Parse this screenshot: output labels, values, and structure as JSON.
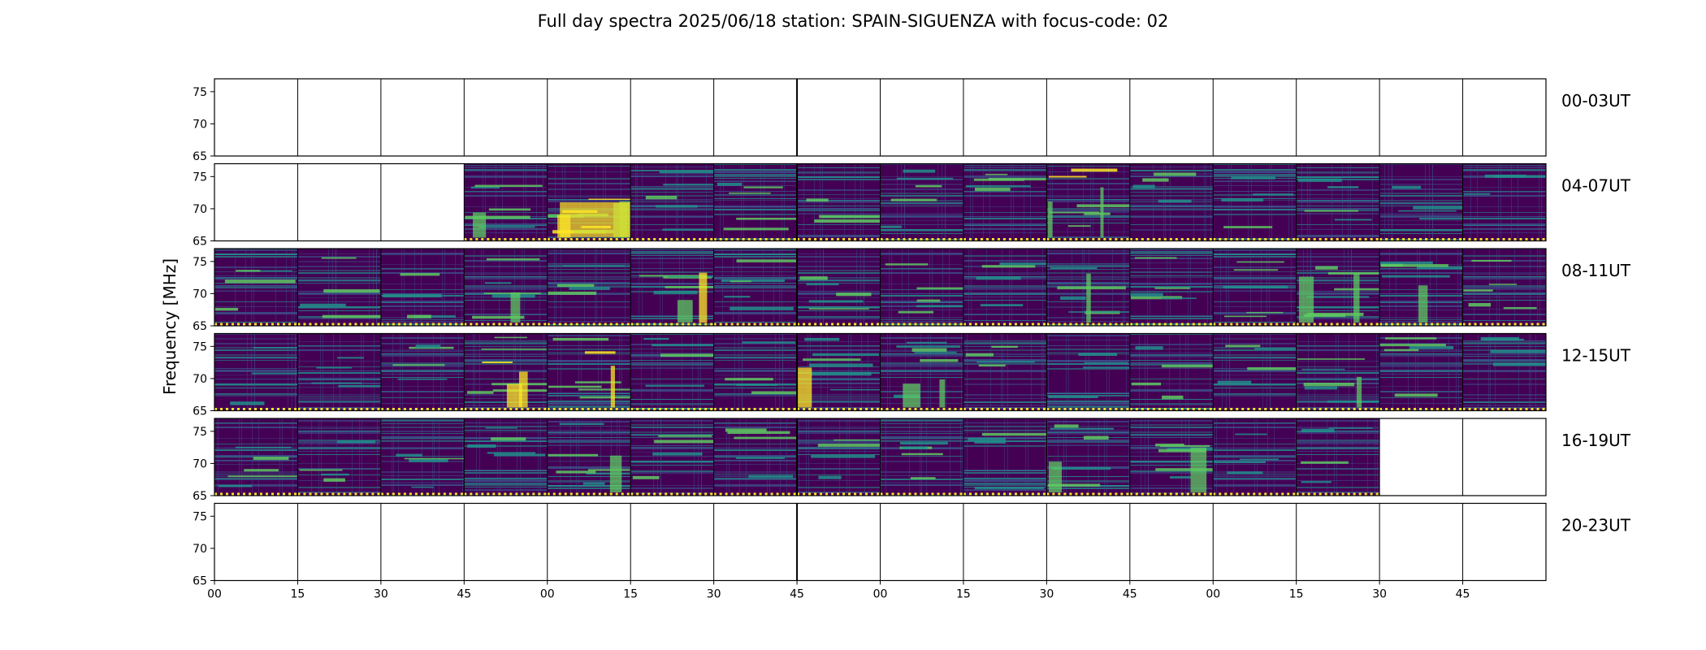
{
  "chart_data": {
    "type": "heatmap",
    "title": "Full day spectra 2025/06/18 station: SPAIN-SIGUENZA with focus-code: 02",
    "ylabel": "Frequency [MHz]",
    "xlabel": "",
    "ylim": [
      65,
      77
    ],
    "y_ticks": [
      "75",
      "70",
      "65"
    ],
    "y_tick_values": [
      75,
      70,
      65
    ],
    "x_tick_labels": [
      "00",
      "15",
      "30",
      "45",
      "00",
      "15",
      "30",
      "45",
      "00",
      "15",
      "30",
      "45",
      "00",
      "15",
      "30",
      "45"
    ],
    "segment_minutes": 15,
    "colormap": [
      "#440154",
      "#3b528b",
      "#21918c",
      "#5ec962",
      "#fde725"
    ],
    "rows": [
      {
        "label": "00-03UT",
        "segments": [
          0,
          0,
          0,
          0,
          0,
          0,
          0,
          0,
          0,
          0,
          0,
          0,
          0,
          0,
          0,
          0
        ],
        "intensity": [
          0,
          0,
          0,
          0,
          0,
          0,
          0,
          0,
          0,
          0,
          0,
          0,
          0,
          0,
          0,
          0
        ]
      },
      {
        "label": "04-07UT",
        "segments": [
          0,
          0,
          0,
          1,
          1,
          1,
          1,
          1,
          1,
          1,
          1,
          1,
          1,
          1,
          1,
          1
        ],
        "intensity": [
          0,
          0,
          0,
          0.55,
          0.85,
          0.45,
          0.5,
          0.35,
          0.45,
          0.5,
          0.7,
          0.35,
          0.3,
          0.3,
          0.25,
          0.2
        ]
      },
      {
        "label": "08-11UT",
        "segments": [
          1,
          1,
          1,
          1,
          1,
          1,
          1,
          1,
          1,
          1,
          1,
          1,
          1,
          1,
          1,
          1
        ],
        "intensity": [
          0.3,
          0.35,
          0.4,
          0.55,
          0.35,
          0.7,
          0.5,
          0.45,
          0.5,
          0.4,
          0.55,
          0.5,
          0.45,
          0.65,
          0.55,
          0.5
        ]
      },
      {
        "label": "12-15UT",
        "segments": [
          1,
          1,
          1,
          1,
          1,
          1,
          1,
          1,
          1,
          1,
          1,
          1,
          1,
          1,
          1,
          1
        ],
        "intensity": [
          0.15,
          0.25,
          0.35,
          0.7,
          0.6,
          0.4,
          0.35,
          0.6,
          0.65,
          0.35,
          0.35,
          0.4,
          0.4,
          0.55,
          0.45,
          0.35
        ]
      },
      {
        "label": "16-19UT",
        "segments": [
          1,
          1,
          1,
          1,
          1,
          1,
          1,
          1,
          1,
          1,
          1,
          1,
          1,
          1,
          0,
          0
        ],
        "intensity": [
          0.45,
          0.35,
          0.3,
          0.45,
          0.6,
          0.4,
          0.45,
          0.35,
          0.5,
          0.4,
          0.55,
          0.6,
          0.3,
          0.3,
          0,
          0
        ]
      },
      {
        "label": "20-23UT",
        "segments": [
          0,
          0,
          0,
          0,
          0,
          0,
          0,
          0,
          0,
          0,
          0,
          0,
          0,
          0,
          0,
          0
        ],
        "intensity": [
          0,
          0,
          0,
          0,
          0,
          0,
          0,
          0,
          0,
          0,
          0,
          0,
          0,
          0,
          0,
          0
        ]
      }
    ],
    "legend": "none",
    "grid": false
  }
}
